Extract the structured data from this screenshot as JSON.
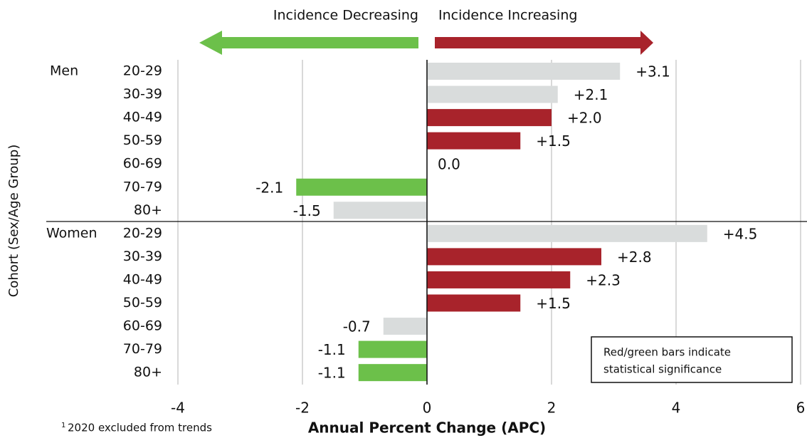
{
  "chart_data": {
    "type": "bar",
    "orientation": "horizontal",
    "arrow_left": "Incidence Decreasing",
    "arrow_right": "Incidence Increasing",
    "ylabel": "Cohort (Sex/Age Group)",
    "xlabel": "Annual Percent Change (APC)",
    "footnote": {
      "marker": "1",
      "text": "2020 excluded from trends"
    },
    "note": [
      "Red/green bars indicate",
      "statistical significance"
    ],
    "xlim": [
      -4,
      6
    ],
    "xticks": [
      -4,
      -2,
      0,
      2,
      4,
      6
    ],
    "grid": true,
    "groups": [
      {
        "name": "Men",
        "categories": [
          "20-29",
          "30-39",
          "40-49",
          "50-59",
          "60-69",
          "70-79",
          "80+"
        ],
        "values": [
          3.1,
          2.1,
          2.0,
          1.5,
          0.0,
          -2.1,
          -1.5
        ],
        "value_labels": [
          "+3.1",
          "+2.1",
          "+2.0",
          "+1.5",
          "0.0",
          "-2.1",
          "-1.5"
        ],
        "colors": [
          "#d9dcdc",
          "#d9dcdc",
          "#a8232b",
          "#a8232b",
          "#d9dcdc",
          "#6cc04a",
          "#d9dcdc"
        ]
      },
      {
        "name": "Women",
        "categories": [
          "20-29",
          "30-39",
          "40-49",
          "50-59",
          "60-69",
          "70-79",
          "80+"
        ],
        "values": [
          4.5,
          2.8,
          2.3,
          1.5,
          -0.7,
          -1.1,
          -1.1
        ],
        "value_labels": [
          "+4.5",
          "+2.8",
          "+2.3",
          "+1.5",
          "-0.7",
          "-1.1",
          "-1.1"
        ],
        "colors": [
          "#d9dcdc",
          "#a8232b",
          "#a8232b",
          "#a8232b",
          "#d9dcdc",
          "#6cc04a",
          "#6cc04a"
        ]
      }
    ]
  }
}
